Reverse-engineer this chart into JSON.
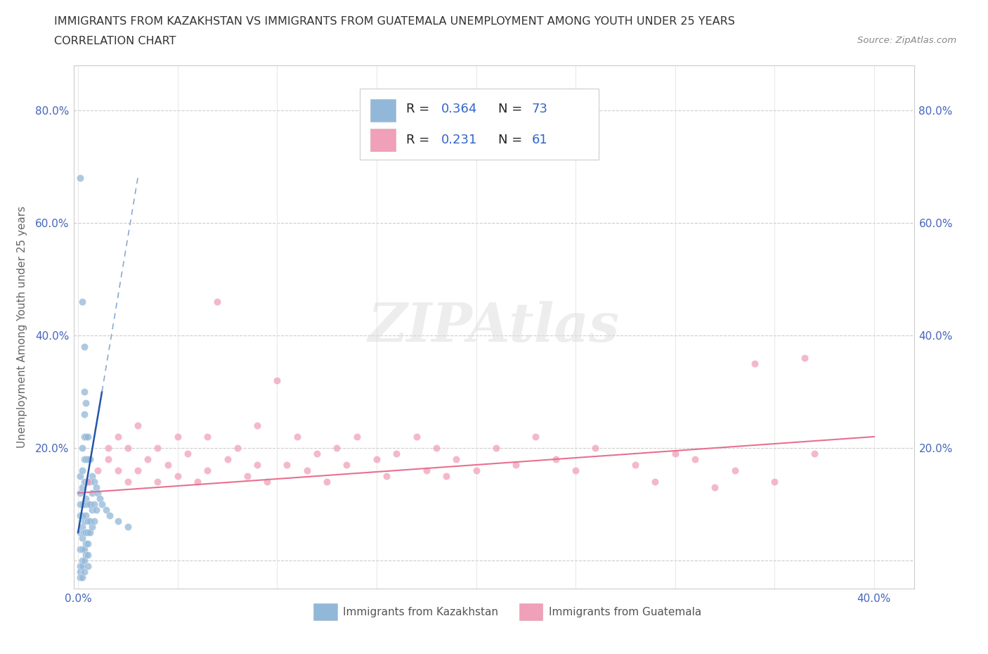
{
  "title_line1": "IMMIGRANTS FROM KAZAKHSTAN VS IMMIGRANTS FROM GUATEMALA UNEMPLOYMENT AMONG YOUTH UNDER 25 YEARS",
  "title_line2": "CORRELATION CHART",
  "source": "Source: ZipAtlas.com",
  "xlabel_label": "Immigrants from Kazakhstan",
  "xlabel_label2": "Immigrants from Guatemala",
  "ylabel": "Unemployment Among Youth under 25 years",
  "xlim": [
    -0.002,
    0.42
  ],
  "ylim": [
    -0.05,
    0.88
  ],
  "xtick_vals": [
    0.0,
    0.05,
    0.1,
    0.15,
    0.2,
    0.25,
    0.3,
    0.35,
    0.4
  ],
  "xtick_labels": [
    "0.0%",
    "",
    "",
    "",
    "",
    "",
    "",
    "",
    "40.0%"
  ],
  "ytick_vals": [
    0.0,
    0.2,
    0.4,
    0.6,
    0.8
  ],
  "ytick_labels": [
    "",
    "20.0%",
    "40.0%",
    "60.0%",
    "80.0%"
  ],
  "kazakhstan_color": "#92b8d9",
  "guatemala_color": "#f0a0b8",
  "kazakhstan_trend_solid_color": "#2255aa",
  "kazakhstan_trend_dashed_color": "#88aad0",
  "guatemala_trend_color": "#e87090",
  "R_kazakhstan": 0.364,
  "N_kazakhstan": 73,
  "R_guatemala": 0.231,
  "N_guatemala": 61,
  "watermark": "ZIPAtlas",
  "legend_box_color": "#aabbcc",
  "legend_sq1_color": "#92b8d9",
  "legend_sq2_color": "#f0a0b8",
  "kaz_x": [
    0.001,
    0.001,
    0.001,
    0.001,
    0.001,
    0.001,
    0.001,
    0.001,
    0.001,
    0.001,
    0.002,
    0.002,
    0.002,
    0.002,
    0.002,
    0.002,
    0.002,
    0.002,
    0.002,
    0.002,
    0.002,
    0.002,
    0.003,
    0.003,
    0.003,
    0.003,
    0.003,
    0.003,
    0.003,
    0.003,
    0.003,
    0.003,
    0.003,
    0.003,
    0.004,
    0.004,
    0.004,
    0.004,
    0.004,
    0.004,
    0.004,
    0.004,
    0.004,
    0.005,
    0.005,
    0.005,
    0.005,
    0.005,
    0.005,
    0.005,
    0.005,
    0.005,
    0.006,
    0.006,
    0.006,
    0.006,
    0.006,
    0.007,
    0.007,
    0.007,
    0.007,
    0.008,
    0.008,
    0.008,
    0.009,
    0.009,
    0.01,
    0.011,
    0.012,
    0.014,
    0.016,
    0.02,
    0.025
  ],
  "kaz_y": [
    0.68,
    0.15,
    0.12,
    0.1,
    0.08,
    0.05,
    0.02,
    -0.01,
    -0.02,
    -0.03,
    0.46,
    0.2,
    0.16,
    0.13,
    0.1,
    0.08,
    0.06,
    0.04,
    0.02,
    0.0,
    -0.01,
    -0.03,
    0.38,
    0.3,
    0.26,
    0.22,
    0.18,
    0.14,
    0.1,
    0.07,
    0.05,
    0.02,
    0.0,
    -0.02,
    0.28,
    0.22,
    0.18,
    0.14,
    0.11,
    0.08,
    0.05,
    0.03,
    0.01,
    0.22,
    0.18,
    0.14,
    0.1,
    0.07,
    0.05,
    0.03,
    0.01,
    -0.01,
    0.18,
    0.14,
    0.1,
    0.07,
    0.05,
    0.15,
    0.12,
    0.09,
    0.06,
    0.14,
    0.1,
    0.07,
    0.13,
    0.09,
    0.12,
    0.11,
    0.1,
    0.09,
    0.08,
    0.07,
    0.06
  ],
  "guat_x": [
    0.005,
    0.01,
    0.015,
    0.015,
    0.02,
    0.02,
    0.025,
    0.025,
    0.03,
    0.03,
    0.035,
    0.04,
    0.04,
    0.045,
    0.05,
    0.05,
    0.055,
    0.06,
    0.065,
    0.065,
    0.07,
    0.075,
    0.08,
    0.085,
    0.09,
    0.09,
    0.095,
    0.1,
    0.105,
    0.11,
    0.115,
    0.12,
    0.125,
    0.13,
    0.135,
    0.14,
    0.15,
    0.155,
    0.16,
    0.17,
    0.175,
    0.18,
    0.185,
    0.19,
    0.2,
    0.21,
    0.22,
    0.23,
    0.24,
    0.25,
    0.26,
    0.28,
    0.29,
    0.3,
    0.31,
    0.32,
    0.33,
    0.34,
    0.35,
    0.365,
    0.37
  ],
  "guat_y": [
    0.14,
    0.16,
    0.18,
    0.2,
    0.16,
    0.22,
    0.14,
    0.2,
    0.16,
    0.24,
    0.18,
    0.14,
    0.2,
    0.17,
    0.15,
    0.22,
    0.19,
    0.14,
    0.16,
    0.22,
    0.46,
    0.18,
    0.2,
    0.15,
    0.17,
    0.24,
    0.14,
    0.32,
    0.17,
    0.22,
    0.16,
    0.19,
    0.14,
    0.2,
    0.17,
    0.22,
    0.18,
    0.15,
    0.19,
    0.22,
    0.16,
    0.2,
    0.15,
    0.18,
    0.16,
    0.2,
    0.17,
    0.22,
    0.18,
    0.16,
    0.2,
    0.17,
    0.14,
    0.19,
    0.18,
    0.13,
    0.16,
    0.35,
    0.14,
    0.36,
    0.19
  ]
}
